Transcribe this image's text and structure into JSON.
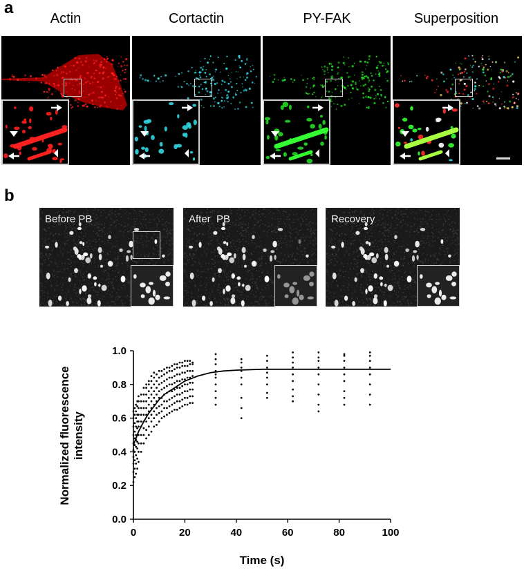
{
  "panel_a": {
    "letter": "a",
    "channels": [
      {
        "title": "Actin",
        "color": "#ff1e1e"
      },
      {
        "title": "Cortactin",
        "color": "#31d5e0"
      },
      {
        "title": "PY-FAK",
        "color": "#22d822"
      },
      {
        "title": "Superposition",
        "color": "#ffffff"
      }
    ]
  },
  "panel_b": {
    "letter": "b",
    "frap_images": [
      {
        "label": "Before PB"
      },
      {
        "label": "After  PB"
      },
      {
        "label": "Recovery"
      }
    ]
  },
  "chart_data": {
    "type": "scatter",
    "xlabel": "Time (s)",
    "ylabel_line1": "Normalized fluorescence",
    "ylabel_line2": "intensity",
    "xlim": [
      0,
      100
    ],
    "ylim": [
      0,
      1.0
    ],
    "x_ticks": [
      "0",
      "20",
      "40",
      "60",
      "80",
      "100"
    ],
    "y_ticks": [
      "0.0",
      "0.2",
      "0.4",
      "0.6",
      "0.8",
      "1.0"
    ],
    "fit": {
      "type": "exponential recovery",
      "x": [
        0,
        1,
        2,
        4,
        6,
        8,
        10,
        12,
        15,
        18,
        20,
        25,
        30,
        35,
        40,
        50,
        60,
        70,
        80,
        90,
        100
      ],
      "y": [
        0.44,
        0.48,
        0.52,
        0.58,
        0.63,
        0.67,
        0.71,
        0.74,
        0.77,
        0.8,
        0.82,
        0.85,
        0.87,
        0.88,
        0.885,
        0.89,
        0.89,
        0.89,
        0.89,
        0.89,
        0.89
      ]
    },
    "scatter_groups": [
      {
        "x": 0.0,
        "y": [
          0.22,
          0.28,
          0.33,
          0.37,
          0.41,
          0.45,
          0.5,
          0.55,
          0.6,
          0.64
        ]
      },
      {
        "x": 0.5,
        "y": [
          0.25,
          0.3,
          0.35,
          0.4,
          0.44,
          0.48,
          0.52,
          0.57,
          0.62,
          0.66
        ]
      },
      {
        "x": 1.0,
        "y": [
          0.27,
          0.33,
          0.38,
          0.43,
          0.47,
          0.5,
          0.55,
          0.6,
          0.64,
          0.68
        ]
      },
      {
        "x": 1.5,
        "y": [
          0.3,
          0.36,
          0.42,
          0.46,
          0.5,
          0.54,
          0.58,
          0.62,
          0.67,
          0.7
        ]
      },
      {
        "x": 2.0,
        "y": [
          0.34,
          0.4,
          0.45,
          0.5,
          0.55,
          0.58,
          0.62,
          0.66,
          0.7,
          0.73
        ]
      },
      {
        "x": 3.0,
        "y": [
          0.4,
          0.45,
          0.5,
          0.55,
          0.58,
          0.62,
          0.66,
          0.7,
          0.74
        ]
      },
      {
        "x": 4.0,
        "y": [
          0.45,
          0.5,
          0.54,
          0.58,
          0.62,
          0.66,
          0.7,
          0.74,
          0.78
        ]
      },
      {
        "x": 5.0,
        "y": [
          0.48,
          0.53,
          0.58,
          0.62,
          0.66,
          0.7,
          0.74,
          0.78,
          0.8
        ]
      },
      {
        "x": 6.0,
        "y": [
          0.5,
          0.55,
          0.6,
          0.64,
          0.68,
          0.72,
          0.76,
          0.8,
          0.82
        ]
      },
      {
        "x": 7.0,
        "y": [
          0.52,
          0.58,
          0.62,
          0.66,
          0.7,
          0.74,
          0.78,
          0.82,
          0.85
        ]
      },
      {
        "x": 8.0,
        "y": [
          0.55,
          0.6,
          0.64,
          0.68,
          0.72,
          0.76,
          0.8,
          0.84,
          0.87
        ]
      },
      {
        "x": 9.0,
        "y": [
          0.56,
          0.62,
          0.66,
          0.7,
          0.74,
          0.78,
          0.82,
          0.86
        ]
      },
      {
        "x": 10.0,
        "y": [
          0.58,
          0.63,
          0.67,
          0.72,
          0.76,
          0.8,
          0.84,
          0.88
        ]
      },
      {
        "x": 11.0,
        "y": [
          0.6,
          0.64,
          0.68,
          0.72,
          0.77,
          0.81,
          0.85,
          0.88
        ]
      },
      {
        "x": 12.0,
        "y": [
          0.61,
          0.66,
          0.7,
          0.74,
          0.78,
          0.82,
          0.86,
          0.89
        ]
      },
      {
        "x": 13.0,
        "y": [
          0.62,
          0.66,
          0.7,
          0.75,
          0.79,
          0.83,
          0.87,
          0.9
        ]
      },
      {
        "x": 14.0,
        "y": [
          0.63,
          0.67,
          0.71,
          0.76,
          0.8,
          0.84,
          0.88,
          0.9
        ]
      },
      {
        "x": 15.0,
        "y": [
          0.64,
          0.68,
          0.72,
          0.76,
          0.8,
          0.84,
          0.88,
          0.91
        ]
      },
      {
        "x": 16.0,
        "y": [
          0.65,
          0.69,
          0.73,
          0.77,
          0.81,
          0.85,
          0.89,
          0.92
        ]
      },
      {
        "x": 17.0,
        "y": [
          0.65,
          0.7,
          0.74,
          0.78,
          0.82,
          0.86,
          0.9,
          0.92
        ]
      },
      {
        "x": 18.0,
        "y": [
          0.66,
          0.7,
          0.74,
          0.78,
          0.82,
          0.86,
          0.9,
          0.93
        ]
      },
      {
        "x": 19.0,
        "y": [
          0.67,
          0.71,
          0.75,
          0.79,
          0.83,
          0.87,
          0.91,
          0.93
        ]
      },
      {
        "x": 20.0,
        "y": [
          0.68,
          0.72,
          0.76,
          0.8,
          0.83,
          0.87,
          0.91,
          0.94
        ]
      },
      {
        "x": 21.0,
        "y": [
          0.68,
          0.72,
          0.76,
          0.8,
          0.84,
          0.88,
          0.91,
          0.94
        ]
      },
      {
        "x": 22.0,
        "y": [
          0.69,
          0.73,
          0.77,
          0.81,
          0.84,
          0.88,
          0.92,
          0.94
        ]
      },
      {
        "x": 23.0,
        "y": [
          0.69,
          0.73,
          0.77,
          0.81,
          0.85,
          0.88,
          0.92,
          0.93
        ]
      },
      {
        "x": 32.0,
        "y": [
          0.68,
          0.72,
          0.76,
          0.8,
          0.84,
          0.86,
          0.88,
          0.92,
          0.95,
          0.98
        ]
      },
      {
        "x": 42.0,
        "y": [
          0.6,
          0.66,
          0.72,
          0.8,
          0.84,
          0.88,
          0.9,
          0.93,
          0.95
        ]
      },
      {
        "x": 52.0,
        "y": [
          0.72,
          0.75,
          0.8,
          0.84,
          0.87,
          0.9,
          0.94,
          0.97
        ]
      },
      {
        "x": 62.0,
        "y": [
          0.7,
          0.73,
          0.77,
          0.82,
          0.86,
          0.9,
          0.93,
          0.96,
          0.99
        ]
      },
      {
        "x": 72.0,
        "y": [
          0.64,
          0.68,
          0.74,
          0.8,
          0.86,
          0.9,
          0.94,
          0.96,
          0.99
        ]
      },
      {
        "x": 82.0,
        "y": [
          0.68,
          0.72,
          0.76,
          0.82,
          0.86,
          0.9,
          0.94,
          0.97,
          0.98
        ]
      },
      {
        "x": 92.0,
        "y": [
          0.68,
          0.74,
          0.8,
          0.86,
          0.9,
          0.94,
          0.97,
          0.99
        ]
      }
    ]
  }
}
